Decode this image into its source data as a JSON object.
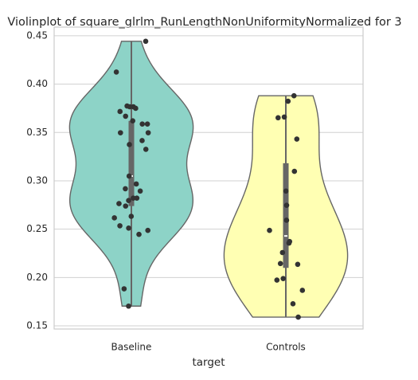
{
  "chart_data": {
    "type": "violin",
    "title": "Violinplot of square_glrlm_RunLengthNonUniformityNormalized for 3",
    "x_label": "target",
    "categories": [
      "Baseline",
      "Controls"
    ],
    "colors": [
      "#8dd3c7",
      "#ffffb3"
    ],
    "values": [
      [
        0.4443,
        0.4125,
        0.3766,
        0.3774,
        0.3766,
        0.375,
        0.3717,
        0.3668,
        0.362,
        0.3587,
        0.3587,
        0.3497,
        0.3497,
        0.3416,
        0.3375,
        0.3326,
        0.3049,
        0.2967,
        0.2918,
        0.2894,
        0.2821,
        0.2821,
        0.2796,
        0.2764,
        0.2739,
        0.2633,
        0.2617,
        0.2535,
        0.2511,
        0.2487,
        0.2446,
        0.1883,
        0.1704
      ],
      [
        0.388,
        0.3823,
        0.366,
        0.3652,
        0.3432,
        0.3098,
        0.2894,
        0.2747,
        0.2592,
        0.2487,
        0.2356,
        0.2372,
        0.2258,
        0.2136,
        0.2144,
        0.1989,
        0.1973,
        0.1867,
        0.1728,
        0.159
      ]
    ],
    "ylim": [
      0.1467,
      0.459
    ],
    "yticks": [
      {
        "value": 0.15,
        "label": "0.15"
      },
      {
        "value": 0.2,
        "label": "0.20"
      },
      0.25,
      {
        "value": 0.3,
        "label": "0.30"
      },
      0.35,
      {
        "value": 0.4,
        "label": "0.40"
      },
      0.45
    ],
    "grid": true
  }
}
